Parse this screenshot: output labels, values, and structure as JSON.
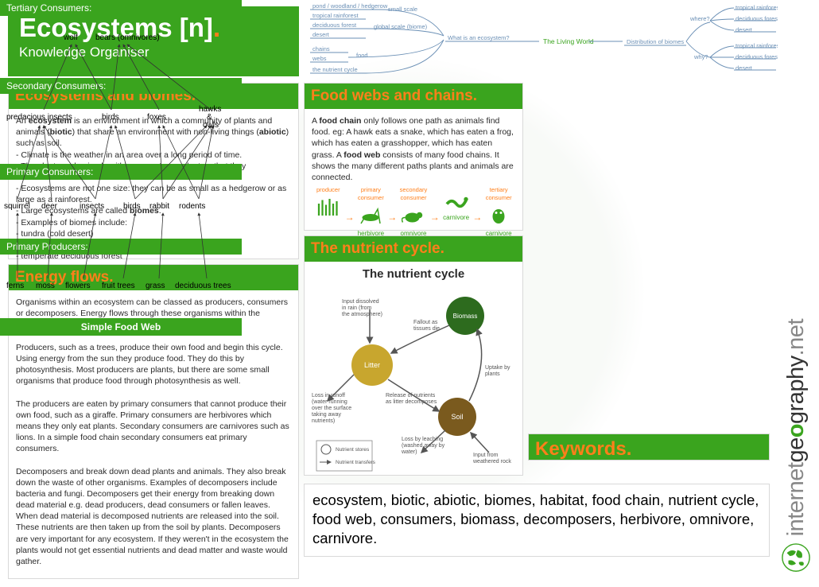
{
  "colors": {
    "green": "#3aa41e",
    "orange": "#ff7f1a",
    "grid": "#d9d9d9",
    "text": "#2a2a2a",
    "mindmap": "#6a8fb5"
  },
  "header": {
    "title_main": "Ecosystems [n]",
    "title_suffix": ".",
    "subtitle": "Knowledge Organiser"
  },
  "mindmap": {
    "center": "The Living World",
    "left_hub": "What is an ecosystem?",
    "left_groups": [
      {
        "label": "small scale",
        "items": [
          "pond / woodland / hedgerow"
        ]
      },
      {
        "label": "global scale (biome)",
        "items": [
          "tropical rainforest",
          "deciduous forest",
          "desert"
        ]
      },
      {
        "label": "food",
        "items": [
          "chains",
          "webs"
        ]
      },
      {
        "label": "",
        "items": [
          "the nutrient cycle"
        ]
      }
    ],
    "right_hub": "Distribution of biomes",
    "right_groups": [
      {
        "label": "where?",
        "items": [
          "tropical rainforest",
          "deciduous forest",
          "desert"
        ]
      },
      {
        "label": "why?",
        "items": [
          "tropical rainforest",
          "deciduous forest",
          "desert"
        ]
      }
    ]
  },
  "ecosystems": {
    "title": "Ecosystems and biomes",
    "dot": ".",
    "body_html": "An <b>ecosystem</b> is an environment in which a community of plants and animals (<b>biotic</b>) that share an environment with non-living things (<b>abiotic</b>) such as soil.<br>- Climate is the weather in an area over a long period of time.<br>- The plants and animals within ecosystems adapt so that they<br>are able to survive in that area.<br>- Ecosystems are not one size: they can be as small as a hedgerow or as large as a rainforest.<br>- Large ecosystems are called <b>biomes</b>.<br>- Examples of biomes include:<br>- tundra (cold desert)<br>- coniferous forest<br>- temperate deciduous forest"
  },
  "energy": {
    "title": "Energy flows",
    "dot": ".",
    "body_html": "Organisms within an ecosystem can be classed as producers, consumers or decomposers. Energy flows through these organisms within the ecosystem.<br><br>Producers, such as a trees, produce their own food and begin this cycle. Using energy from the sun they produce food. They do this by photosynthesis. Most producers are plants, but there are some small organisms that produce food through photosynthesis as well.<br><br>The producers are eaten by primary consumers that cannot produce their own food, such as a giraffe. Primary consumers are herbivores which means they only eat plants. Secondary consumers are carnivores such as lions. In a simple food chain secondary consumers eat primary consumers.<br><br>Decomposers and break down dead plants and animals. They also break down the waste of other organisms. Examples of decomposers include bacteria and fungi. Decomposers get their energy from breaking down dead material e.g. dead producers, dead consumers or fallen leaves. When dead material is decomposed nutrients are released into the soil. These nutrients are then taken up from the soil by plants. Decomposers are very important for any ecosystem. If they weren't in the ecosystem the plants would not get essential nutrients and dead matter and waste would gather."
  },
  "foodwebs": {
    "title": "Food webs and chains",
    "dot": ".",
    "body_html": "A <b>food chain</b> only follows one path as animals find food. eg: A hawk eats a snake, which has eaten a frog, which has eaten a grasshopper, which has eaten grass. A <b>food web</b> consists of many food chains. It shows the many different paths plants and animals are connected.",
    "chain": [
      {
        "top": "producer",
        "icon": "grass",
        "bottom": ""
      },
      {
        "top": "primary consumer",
        "icon": "grasshopper",
        "bottom": "herbivore"
      },
      {
        "top": "secondary consumer",
        "icon": "mouse",
        "bottom": "omnivore"
      },
      {
        "top": "",
        "icon": "snake",
        "bottom": "carnivore"
      },
      {
        "top": "tertiary consumer",
        "icon": "owl",
        "bottom": "carnivore"
      }
    ]
  },
  "nutrient": {
    "title": "The nutrient cycle",
    "dot": ".",
    "diagram_title": "The nutrient cycle",
    "nodes": {
      "biomass": {
        "label": "Biomass",
        "color": "#2d6b1e"
      },
      "litter": {
        "label": "Litter",
        "color": "#c8a62e"
      },
      "soil": {
        "label": "Soil",
        "color": "#7a5a1e"
      }
    },
    "labels": {
      "in_rain": "Input dissolved in rain (from the atmosphere)",
      "fallout": "Fallout as tissues die",
      "runoff": "Loss in runoff (water running over the surface taking away nutrients)",
      "release": "Release of nutrients as litter decomposes",
      "uptake": "Uptake by plants",
      "leaching": "Loss by leaching (washed away by water)",
      "weathered": "Input from weathered rock"
    },
    "legend": {
      "stores": "Nutrient stores",
      "transfers": "Nutrient transfers"
    }
  },
  "foodweb_diagram": {
    "levels": {
      "tertiary": {
        "title": "Tertiary Consumers:",
        "items": [
          "wolf",
          "bears (omnivores)"
        ]
      },
      "secondary": {
        "title": "Secondary Consumers:",
        "items": [
          "predacious insects",
          "birds",
          "foxes",
          "hawks & owls"
        ]
      },
      "primary": {
        "title": "Primary Consumers:",
        "items": [
          "squirrel",
          "deer",
          "insects",
          "birds",
          "rabbit",
          "rodents"
        ]
      },
      "producers": {
        "title": "Primary Producers:",
        "items": [
          "ferns",
          "moss",
          "flowers",
          "fruit trees",
          "grass",
          "deciduous trees"
        ]
      }
    },
    "bottom_title": "Simple Food Web"
  },
  "keywords": {
    "title": "Keywords",
    "dot": ".",
    "text": "ecosystem, biotic, abiotic, biomes, habitat, food chain, nutrient cycle, food web, consumers, biomass, decomposers, herbivore, omnivore, carnivore."
  },
  "brand": {
    "part1": "internet",
    "part2": "ge",
    "part2b": "o",
    "part3": "graphy",
    "part4": ".net"
  }
}
